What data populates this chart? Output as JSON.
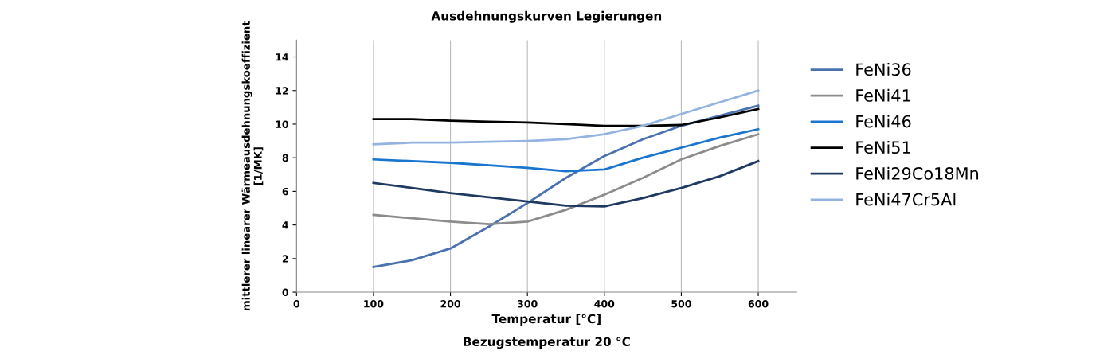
{
  "chart_data": {
    "type": "line",
    "title": "Ausdehnungskurven Legierungen",
    "xlabel": "Temperatur [°C]",
    "ylabel": "mittlerer linearer Wärmeausdehnungskoeffizient\n[1/MK]",
    "annotations": [
      "Bezugstemperatur 20 °C"
    ],
    "x": [
      100,
      150,
      200,
      250,
      300,
      350,
      400,
      450,
      500,
      550,
      600
    ],
    "series": [
      {
        "name": "FeNi36",
        "color": "#4a72b0",
        "values": [
          1.5,
          1.9,
          2.6,
          3.9,
          5.3,
          6.8,
          8.1,
          9.1,
          9.9,
          10.5,
          11.1
        ]
      },
      {
        "name": "FeNi41",
        "color": "#8c8c8c",
        "values": [
          4.6,
          4.4,
          4.2,
          4.05,
          4.2,
          4.9,
          5.8,
          6.8,
          7.9,
          8.7,
          9.4
        ]
      },
      {
        "name": "FeNi46",
        "color": "#1a75cf",
        "values": [
          7.9,
          7.8,
          7.7,
          7.55,
          7.4,
          7.2,
          7.3,
          8.0,
          8.6,
          9.2,
          9.7
        ]
      },
      {
        "name": "FeNi51",
        "color": "#000000",
        "values": [
          10.3,
          10.3,
          10.2,
          10.15,
          10.1,
          10.0,
          9.9,
          9.9,
          9.95,
          10.4,
          10.9
        ]
      },
      {
        "name": "FeNi29Co18Mn",
        "color": "#1f3a60",
        "values": [
          6.5,
          6.2,
          5.9,
          5.65,
          5.4,
          5.15,
          5.1,
          5.6,
          6.2,
          6.9,
          7.8
        ]
      },
      {
        "name": "FeNi47Cr5Al",
        "color": "#95b3e0",
        "values": [
          8.8,
          8.9,
          8.9,
          8.95,
          9.0,
          9.1,
          9.4,
          9.9,
          10.6,
          11.3,
          12.0
        ]
      }
    ],
    "xlim": [
      0,
      650
    ],
    "xticks": [
      0,
      100,
      200,
      300,
      400,
      500,
      600
    ],
    "ylim": [
      0,
      15
    ],
    "yticks": [
      0,
      2,
      4,
      6,
      8,
      10,
      12,
      14
    ],
    "grid": "x",
    "legend": "right",
    "marker": "none",
    "line_style": "solid"
  }
}
